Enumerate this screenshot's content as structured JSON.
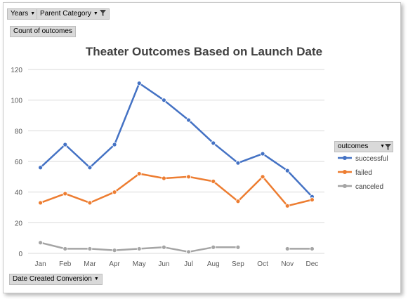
{
  "filters": {
    "years_label": "Years",
    "parent_category_label": "Parent Category",
    "value_field_label": "Count of outcomes",
    "axis_field_label": "Date Created Conversion",
    "legend_field_label": "outcomes"
  },
  "colors": {
    "successful": "#4472c4",
    "failed": "#ed7d31",
    "canceled": "#a5a5a5",
    "grid": "#d9d9d9",
    "axis_text": "#595959"
  },
  "icons": {
    "dropdown": "chevron-down-icon",
    "filter": "funnel-icon"
  },
  "chart_data": {
    "type": "line",
    "title": "Theater Outcomes Based on Launch Date",
    "categories": [
      "Jan",
      "Feb",
      "Mar",
      "Apr",
      "May",
      "Jun",
      "Jul",
      "Aug",
      "Sep",
      "Oct",
      "Nov",
      "Dec"
    ],
    "series": [
      {
        "name": "successful",
        "values": [
          56,
          71,
          56,
          71,
          111,
          100,
          87,
          72,
          59,
          65,
          54,
          37
        ]
      },
      {
        "name": "failed",
        "values": [
          33,
          39,
          33,
          40,
          52,
          49,
          50,
          47,
          34,
          50,
          31,
          35
        ]
      },
      {
        "name": "canceled",
        "values": [
          7,
          3,
          3,
          2,
          3,
          4,
          1,
          4,
          4,
          null,
          3,
          3
        ]
      }
    ],
    "ylim": [
      0,
      120
    ],
    "yticks": [
      0,
      20,
      40,
      60,
      80,
      100,
      120
    ],
    "grid": true,
    "legend": "right"
  }
}
